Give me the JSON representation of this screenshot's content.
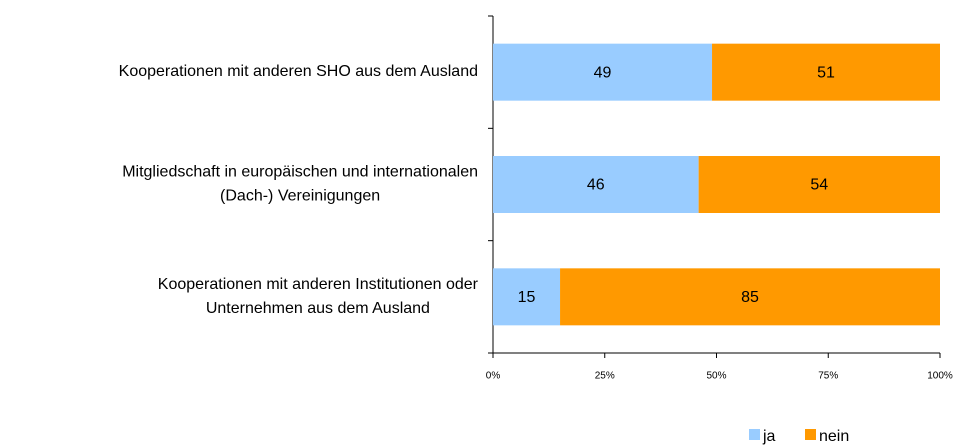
{
  "chart_data": {
    "type": "stacked-barh",
    "categories": [
      "Kooperationen mit anderen SHO aus dem Ausland",
      "Mitgliedschaft in europäischen und internationalen\n(Dach-) Vereinigungen",
      "Kooperationen mit anderen Institutionen oder\nUnternehmen aus dem Ausland"
    ],
    "series": [
      {
        "name": "ja",
        "color": "#99ccff",
        "values": [
          49,
          46,
          15
        ]
      },
      {
        "name": "nein",
        "color": "#ff9900",
        "values": [
          51,
          54,
          85
        ]
      }
    ],
    "xlim": [
      0,
      100
    ],
    "xticks": [
      {
        "value": 0,
        "label": "0%"
      },
      {
        "value": 25,
        "label": "25%"
      },
      {
        "value": 50,
        "label": "50%"
      },
      {
        "value": 75,
        "label": "75%"
      },
      {
        "value": 100,
        "label": "100%"
      }
    ],
    "legend": "bottom"
  }
}
